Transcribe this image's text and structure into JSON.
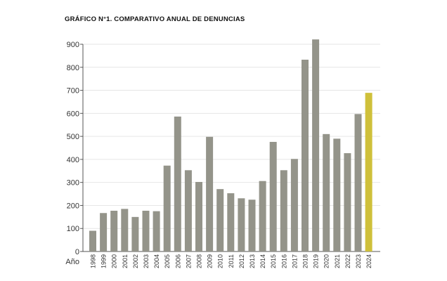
{
  "chart_data": {
    "type": "bar",
    "title": "GRÁFICO N°1. COMPARATIVO ANUAL DE DENUNCIAS",
    "xlabel": "Año",
    "ylabel": "",
    "ylim": [
      0,
      900
    ],
    "yticks": [
      0,
      100,
      200,
      300,
      400,
      500,
      600,
      700,
      800,
      900
    ],
    "grid": true,
    "categories": [
      "1998",
      "1999",
      "2000",
      "2001",
      "2002",
      "2003",
      "2004",
      "2005",
      "2006",
      "2007",
      "2008",
      "2009",
      "2010",
      "2011",
      "2012",
      "2013",
      "2014",
      "2015",
      "2016",
      "2017",
      "2018",
      "2019",
      "2020",
      "2021",
      "2022",
      "2023",
      "2024"
    ],
    "values": [
      90,
      167,
      177,
      185,
      150,
      177,
      175,
      373,
      586,
      353,
      302,
      498,
      271,
      253,
      231,
      225,
      306,
      476,
      353,
      402,
      833,
      921,
      510,
      490,
      427,
      597,
      689
    ],
    "colors": {
      "default": "#94948a",
      "highlight": "#cfc03a",
      "grid": "#e6e6e6",
      "axis": "#555555"
    },
    "highlight_category": "2024"
  }
}
